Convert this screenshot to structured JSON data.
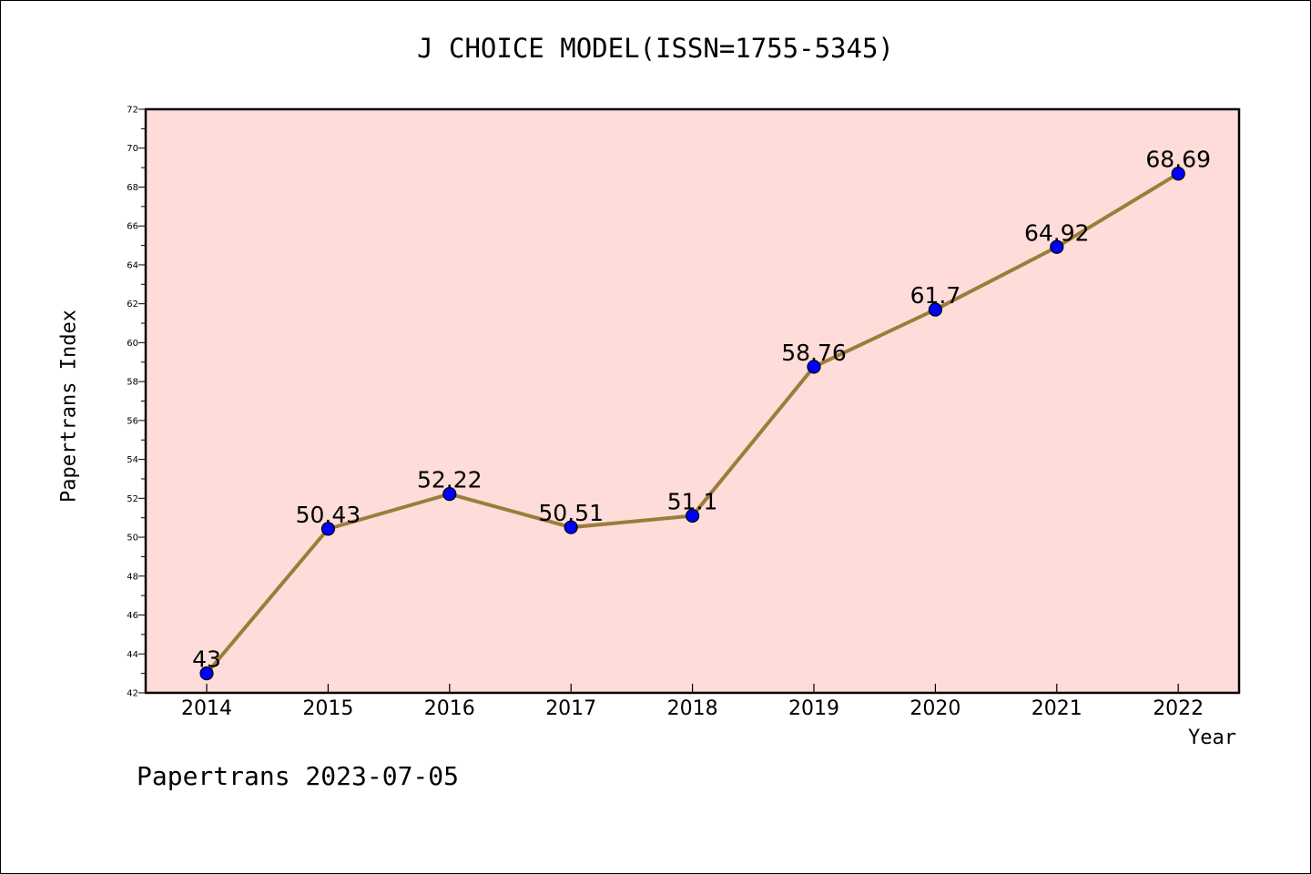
{
  "chart_data": {
    "type": "line",
    "title": "J CHOICE MODEL(ISSN=1755-5345)",
    "xlabel": "Year",
    "ylabel": "Papertrans Index",
    "categories": [
      "2014",
      "2015",
      "2016",
      "2017",
      "2018",
      "2019",
      "2020",
      "2021",
      "2022"
    ],
    "series": [
      {
        "values": [
          43,
          50.43,
          52.22,
          50.51,
          51.1,
          58.76,
          61.7,
          64.92,
          68.69
        ],
        "labels": [
          "43",
          "50.43",
          "52.22",
          "50.51",
          "51.1",
          "58.76",
          "61.7",
          "64.92",
          "68.69"
        ]
      }
    ],
    "ylim": [
      42,
      72
    ],
    "yticks": [
      42,
      44,
      46,
      48,
      50,
      52,
      54,
      56,
      58,
      60,
      62,
      64,
      66,
      68,
      70,
      72
    ],
    "grid": false,
    "colors": {
      "plot_background": "#fddcd9",
      "line": "#9a7d3a",
      "marker": "#0000ff"
    }
  },
  "footer": "Papertrans 2023-07-05"
}
